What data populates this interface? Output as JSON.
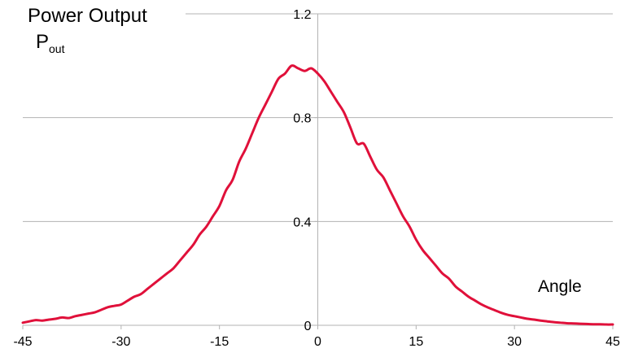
{
  "chart_data": {
    "type": "line",
    "title": "Power Output",
    "ylabel": {
      "main": "P",
      "subscript": "out"
    },
    "xlabel": "Angle",
    "xlim": [
      -45,
      45
    ],
    "ylim": [
      0,
      1.2
    ],
    "x_ticks": [
      -45,
      -30,
      -15,
      0,
      15,
      30,
      45
    ],
    "x_tick_labels": [
      "-45",
      "-30",
      "-15",
      "0",
      "15",
      "30",
      "45"
    ],
    "y_ticks": [
      0,
      0.4,
      0.8,
      1.2
    ],
    "y_tick_labels": [
      "0",
      "0.4",
      "0.8",
      "1.2"
    ],
    "grid": true,
    "legend": "none",
    "colors": {
      "series": "#e0103a",
      "grid": "#b3b3b3"
    },
    "series": [
      {
        "x": [
          -45,
          -44,
          -43,
          -42,
          -41,
          -40,
          -39,
          -38,
          -37,
          -36,
          -35,
          -34,
          -33,
          -32,
          -31,
          -30,
          -29,
          -28,
          -27,
          -26,
          -25,
          -24,
          -23,
          -22,
          -21,
          -20,
          -19,
          -18,
          -17,
          -16,
          -15,
          -14,
          -13,
          -12,
          -11,
          -10,
          -9,
          -8,
          -7,
          -6,
          -5,
          -4,
          -3,
          -2,
          -1,
          0,
          1,
          2,
          3,
          4,
          5,
          6,
          7,
          8,
          9,
          10,
          11,
          12,
          13,
          14,
          15,
          16,
          17,
          18,
          19,
          20,
          21,
          22,
          23,
          24,
          25,
          26,
          27,
          28,
          29,
          30,
          31,
          32,
          33,
          34,
          35,
          36,
          37,
          38,
          39,
          40,
          41,
          42,
          43,
          44,
          45
        ],
        "y": [
          0.01,
          0.015,
          0.02,
          0.018,
          0.022,
          0.025,
          0.03,
          0.028,
          0.035,
          0.04,
          0.045,
          0.05,
          0.06,
          0.07,
          0.075,
          0.08,
          0.095,
          0.11,
          0.12,
          0.14,
          0.16,
          0.18,
          0.2,
          0.22,
          0.25,
          0.28,
          0.31,
          0.35,
          0.38,
          0.42,
          0.46,
          0.52,
          0.56,
          0.63,
          0.68,
          0.74,
          0.8,
          0.85,
          0.9,
          0.95,
          0.97,
          1.0,
          0.99,
          0.98,
          0.99,
          0.97,
          0.94,
          0.9,
          0.86,
          0.82,
          0.76,
          0.7,
          0.7,
          0.65,
          0.6,
          0.57,
          0.52,
          0.47,
          0.42,
          0.38,
          0.33,
          0.29,
          0.26,
          0.23,
          0.2,
          0.18,
          0.15,
          0.13,
          0.11,
          0.095,
          0.08,
          0.068,
          0.058,
          0.048,
          0.04,
          0.035,
          0.03,
          0.025,
          0.022,
          0.018,
          0.015,
          0.012,
          0.01,
          0.008,
          0.007,
          0.006,
          0.005,
          0.004,
          0.004,
          0.003,
          0.003
        ]
      }
    ]
  }
}
